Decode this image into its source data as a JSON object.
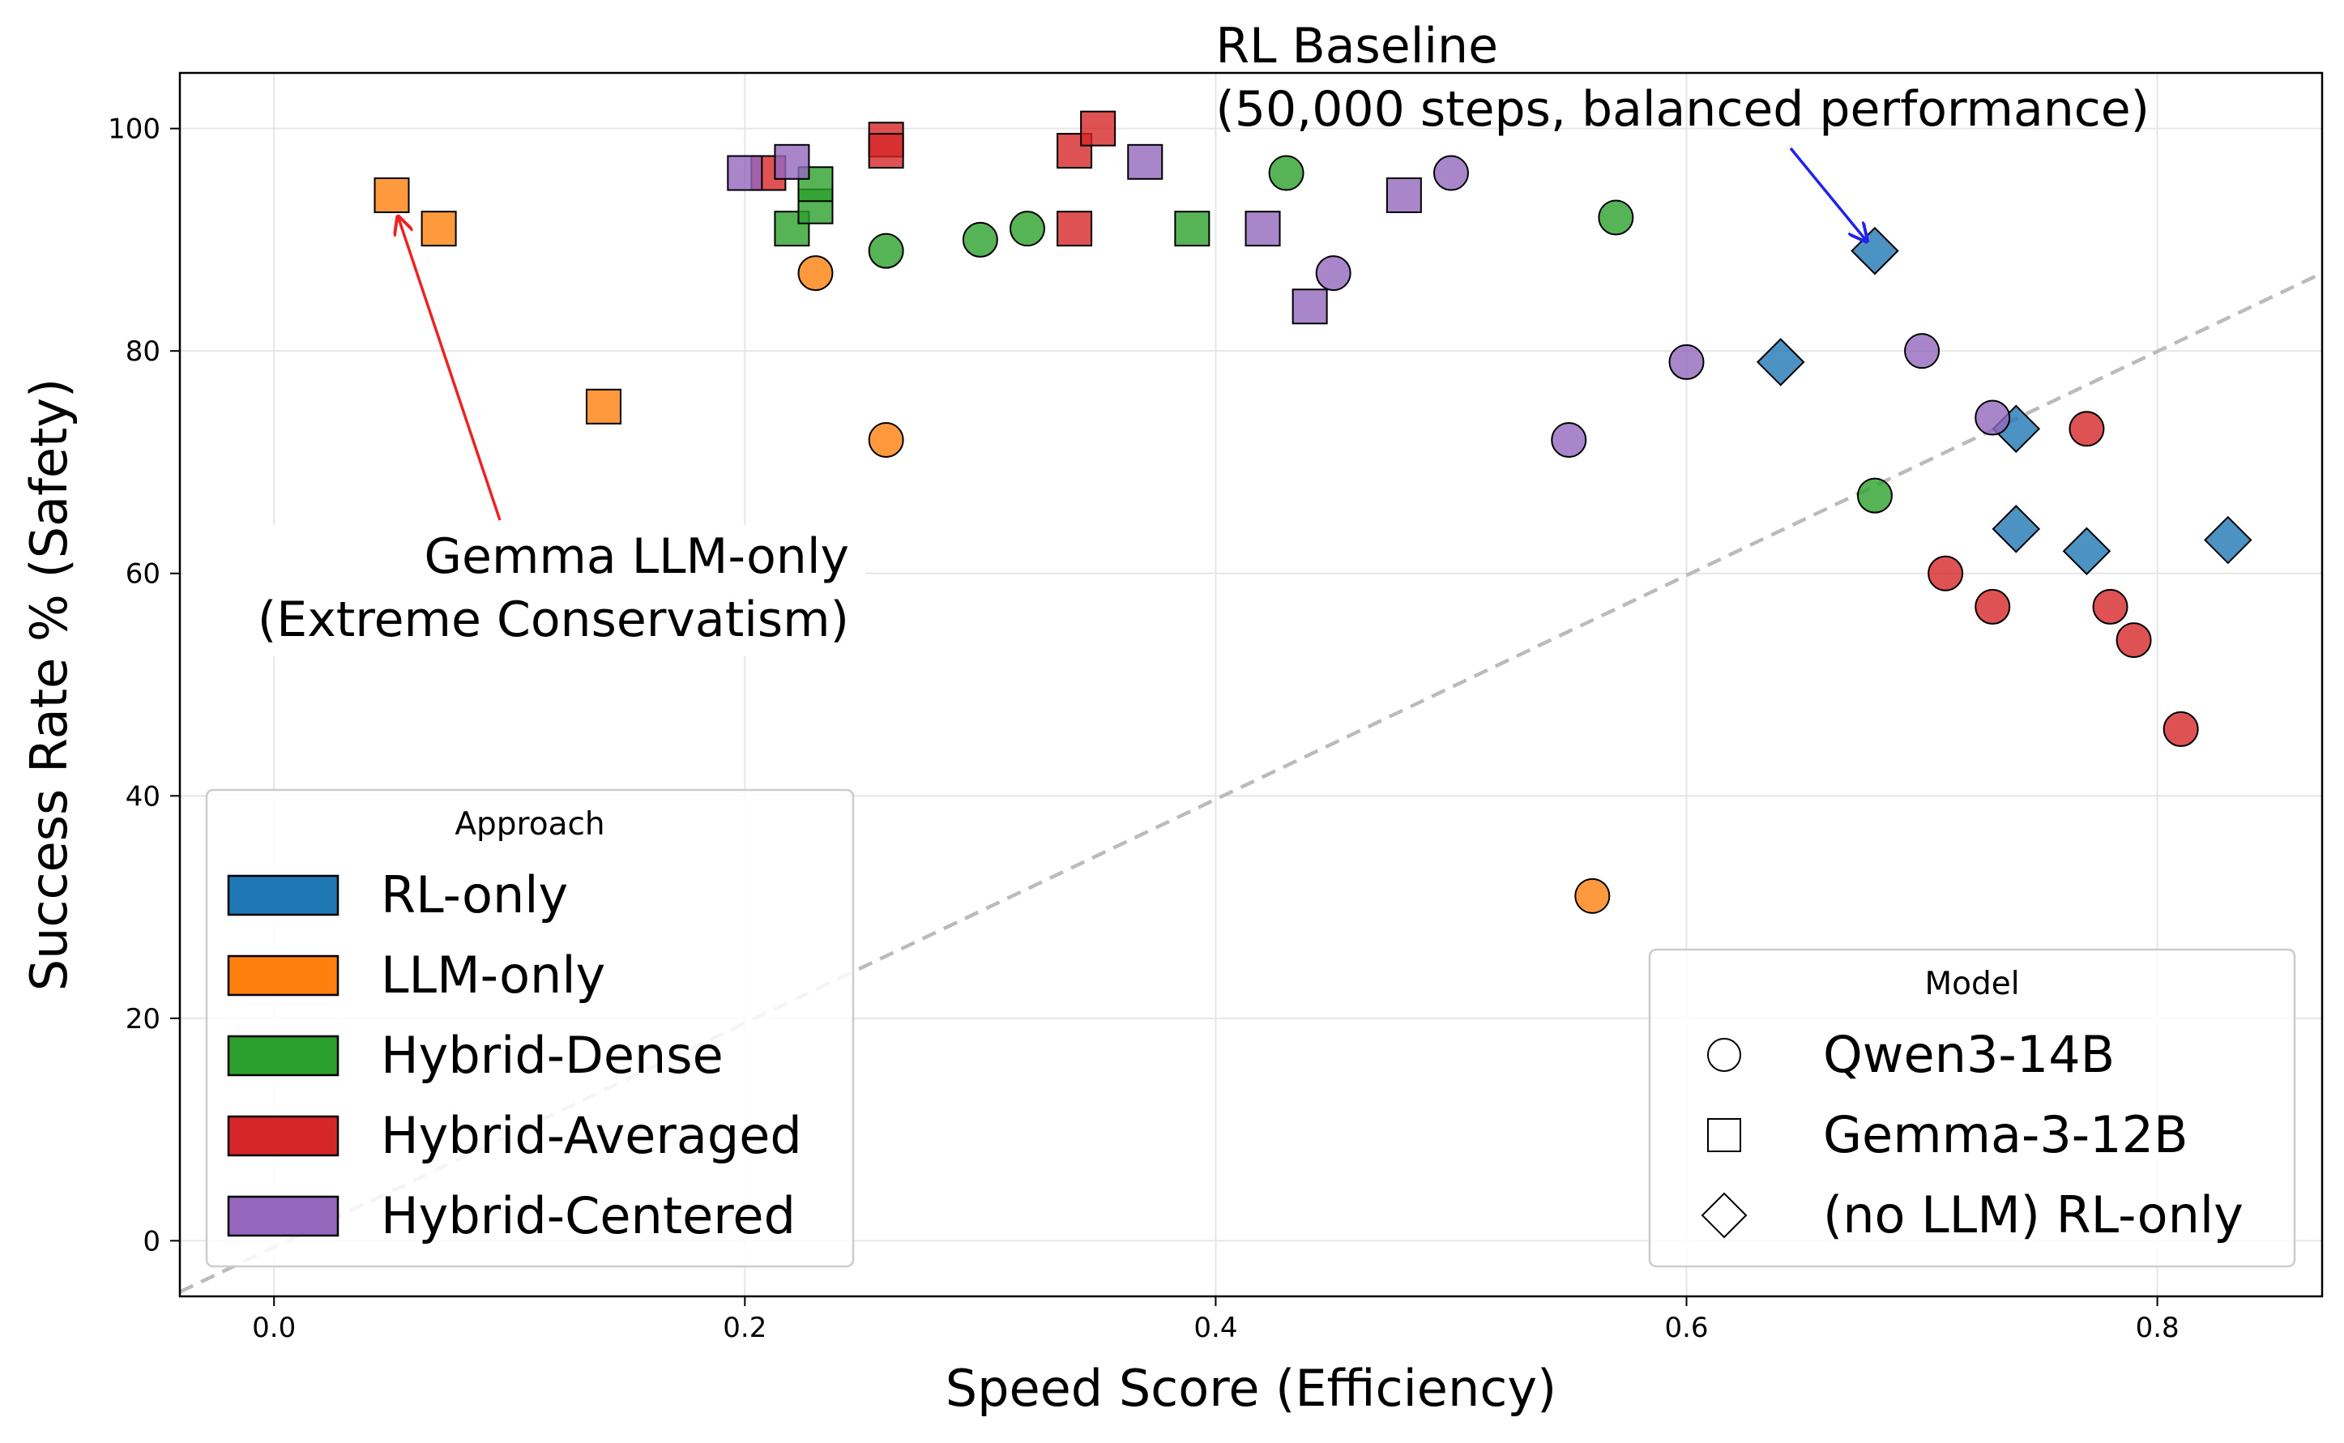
{
  "chart_data": {
    "type": "scatter",
    "title": "",
    "xlabel": "Speed Score (Efficiency)",
    "ylabel": "Success Rate % (Safety)",
    "xlim": [
      -0.04,
      0.87
    ],
    "ylim": [
      -5,
      105
    ],
    "xticks": [
      0.0,
      0.2,
      0.4,
      0.6,
      0.8
    ],
    "xtick_labels": [
      "0.0",
      "0.2",
      "0.4",
      "0.6",
      "0.8"
    ],
    "yticks": [
      0,
      20,
      40,
      60,
      80,
      100
    ],
    "ytick_labels": [
      "0",
      "20",
      "40",
      "60",
      "80",
      "100"
    ],
    "grid": true,
    "reference_line": {
      "style": "dashed",
      "color": "#bbbbbb",
      "from": [
        -0.04,
        -4.6
      ],
      "to": [
        0.87,
        87
      ]
    },
    "colors": {
      "RL-only": "#1f77b4",
      "LLM-only": "#ff7f0e",
      "Hybrid-Dense": "#2ca02c",
      "Hybrid-Averaged": "#d62728",
      "Hybrid-Centered": "#9467bd"
    },
    "legend_approach": {
      "title": "Approach",
      "placement": "lower-left",
      "items": [
        "RL-only",
        "LLM-only",
        "Hybrid-Dense",
        "Hybrid-Averaged",
        "Hybrid-Centered"
      ]
    },
    "legend_model": {
      "title": "Model",
      "placement": "lower-right",
      "items": [
        {
          "label": "Qwen3-14B",
          "marker": "circle"
        },
        {
          "label": "Gemma-3-12B",
          "marker": "square"
        },
        {
          "label": "(no LLM) RL-only",
          "marker": "diamond"
        }
      ]
    },
    "annotations": [
      {
        "lines": [
          "RL Baseline",
          "(50,000 steps, balanced performance)"
        ],
        "target": [
          0.68,
          89
        ],
        "text_at": [
          0.4,
          101.5
        ],
        "arrow_color": "#2222ee"
      },
      {
        "lines": [
          "Gemma LLM-only",
          "(Extreme Conservatism)"
        ],
        "target": [
          0.052,
          92.5
        ],
        "text_at": [
          0.09,
          54
        ],
        "arrow_color": "#ee2222"
      }
    ],
    "series": [
      {
        "name": "RL-only",
        "marker": "diamond",
        "points": [
          [
            0.68,
            89
          ],
          [
            0.64,
            79
          ],
          [
            0.74,
            73
          ],
          [
            0.74,
            64
          ],
          [
            0.77,
            62
          ],
          [
            0.83,
            63
          ]
        ]
      },
      {
        "name": "LLM-only",
        "marker": "circle",
        "points": [
          [
            0.23,
            87
          ],
          [
            0.26,
            72
          ],
          [
            0.56,
            31
          ]
        ]
      },
      {
        "name": "LLM-only",
        "marker": "square",
        "points": [
          [
            0.05,
            94
          ],
          [
            0.07,
            91
          ],
          [
            0.14,
            75
          ]
        ]
      },
      {
        "name": "Hybrid-Dense",
        "marker": "circle",
        "points": [
          [
            0.26,
            89
          ],
          [
            0.3,
            90
          ],
          [
            0.32,
            91
          ],
          [
            0.43,
            96
          ],
          [
            0.57,
            92
          ],
          [
            0.68,
            67
          ]
        ]
      },
      {
        "name": "Hybrid-Dense",
        "marker": "square",
        "points": [
          [
            0.22,
            91
          ],
          [
            0.23,
            93
          ],
          [
            0.23,
            95
          ],
          [
            0.39,
            91
          ]
        ]
      },
      {
        "name": "Hybrid-Averaged",
        "marker": "circle",
        "points": [
          [
            0.71,
            60
          ],
          [
            0.73,
            57
          ],
          [
            0.77,
            73
          ],
          [
            0.78,
            57
          ],
          [
            0.79,
            54
          ],
          [
            0.81,
            46
          ]
        ]
      },
      {
        "name": "Hybrid-Averaged",
        "marker": "square",
        "points": [
          [
            0.21,
            96
          ],
          [
            0.26,
            99
          ],
          [
            0.26,
            98
          ],
          [
            0.34,
            98
          ],
          [
            0.35,
            100
          ],
          [
            0.34,
            91
          ]
        ]
      },
      {
        "name": "Hybrid-Centered",
        "marker": "circle",
        "points": [
          [
            0.45,
            87
          ],
          [
            0.5,
            96
          ],
          [
            0.55,
            72
          ],
          [
            0.6,
            79
          ],
          [
            0.7,
            80
          ],
          [
            0.73,
            74
          ]
        ]
      },
      {
        "name": "Hybrid-Centered",
        "marker": "square",
        "points": [
          [
            0.2,
            96
          ],
          [
            0.22,
            97
          ],
          [
            0.37,
            97
          ],
          [
            0.42,
            91
          ],
          [
            0.44,
            84
          ],
          [
            0.48,
            94
          ]
        ]
      }
    ]
  }
}
